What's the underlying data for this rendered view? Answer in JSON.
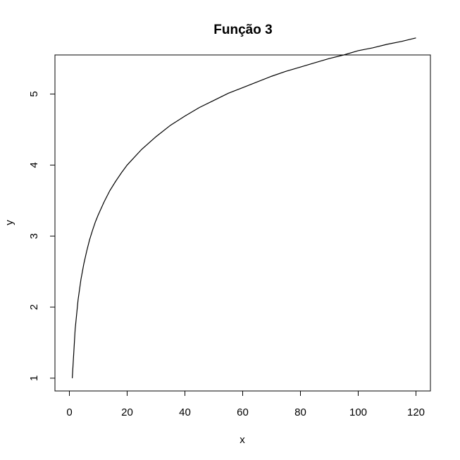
{
  "chart_data": {
    "type": "line",
    "title": "Função 3",
    "xlabel": "x",
    "ylabel": "y",
    "xlim": [
      -5,
      125
    ],
    "ylim": [
      0.82,
      5.55
    ],
    "x_ticks": [
      0,
      20,
      40,
      60,
      80,
      100,
      120
    ],
    "y_ticks": [
      1,
      2,
      3,
      4,
      5
    ],
    "grid": false,
    "legend": "none",
    "line_color": "#000000",
    "series": [
      {
        "x": [
          1,
          2,
          3,
          4,
          5,
          6,
          7,
          8,
          9,
          10,
          12,
          14,
          16,
          18,
          20,
          25,
          30,
          35,
          40,
          45,
          50,
          55,
          60,
          65,
          70,
          75,
          80,
          85,
          90,
          95,
          100,
          105,
          110,
          115,
          120
        ],
        "y": [
          1.0,
          1.69,
          2.1,
          2.39,
          2.61,
          2.79,
          2.95,
          3.08,
          3.2,
          3.3,
          3.48,
          3.64,
          3.77,
          3.89,
          4.0,
          4.22,
          4.4,
          4.56,
          4.69,
          4.81,
          4.91,
          5.01,
          5.09,
          5.17,
          5.25,
          5.32,
          5.38,
          5.44,
          5.5,
          5.55,
          5.61,
          5.65,
          5.7,
          5.74,
          5.79
        ]
      }
    ]
  }
}
